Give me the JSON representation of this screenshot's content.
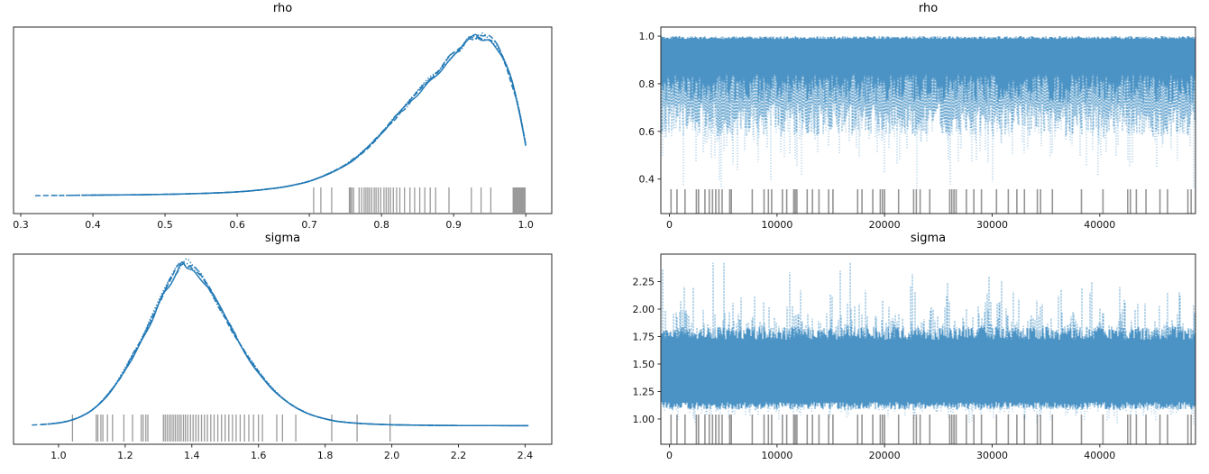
{
  "figure": {
    "background": "#ffffff",
    "line_color": "#1f77b4",
    "trace_core_color": "#4690c3",
    "trace_mid_color": "#5a9dcb",
    "trace_spike_color": "#7db2d8",
    "rug_color": "rgba(30,30,30,0.45)",
    "divergence_color": "rgba(60,60,60,0.55)",
    "spine_color": "#2a2a2a",
    "tick_label_color": "#111111"
  },
  "chart_data": [
    {
      "type": "line",
      "subtype": "kde-posterior",
      "title": "rho",
      "xlabel": "",
      "ylabel": "",
      "legend": "none",
      "grid": false,
      "xlim": [
        0.29,
        1.036
      ],
      "x_ticks": [
        {
          "v": 0.3,
          "label": "0.3"
        },
        {
          "v": 0.4,
          "label": "0.4"
        },
        {
          "v": 0.5,
          "label": "0.5"
        },
        {
          "v": 0.6,
          "label": "0.6"
        },
        {
          "v": 0.7,
          "label": "0.7"
        },
        {
          "v": 0.8,
          "label": "0.8"
        },
        {
          "v": 0.9,
          "label": "0.9"
        },
        {
          "v": 1.0,
          "label": "1.0"
        }
      ],
      "kde_x": [
        0.32,
        0.345,
        0.37,
        0.395,
        0.42,
        0.445,
        0.47,
        0.495,
        0.52,
        0.545,
        0.57,
        0.595,
        0.62,
        0.645,
        0.665,
        0.685,
        0.7,
        0.715,
        0.73,
        0.745,
        0.76,
        0.775,
        0.79,
        0.805,
        0.82,
        0.835,
        0.85,
        0.865,
        0.88,
        0.895,
        0.91,
        0.92,
        0.93,
        0.935,
        0.94,
        0.95,
        0.96,
        0.97,
        0.98,
        0.99,
        1.0
      ],
      "kde_density": [
        0.016,
        0.017,
        0.018,
        0.019,
        0.02,
        0.021,
        0.022,
        0.024,
        0.026,
        0.029,
        0.033,
        0.038,
        0.046,
        0.058,
        0.07,
        0.088,
        0.105,
        0.13,
        0.158,
        0.192,
        0.235,
        0.288,
        0.352,
        0.425,
        0.5,
        0.572,
        0.648,
        0.718,
        0.79,
        0.862,
        0.93,
        0.968,
        0.995,
        1.0,
        0.998,
        0.98,
        0.935,
        0.85,
        0.725,
        0.555,
        0.33
      ],
      "series": [
        {
          "name": "chain 0",
          "style": "solid",
          "x_start": 0.372
        },
        {
          "name": "chain 1",
          "style": "dashed",
          "x_start": 0.32
        },
        {
          "name": "chain 2",
          "style": "dashdot",
          "x_start": 0.355
        },
        {
          "name": "chain 3",
          "style": "dotted",
          "x_start": 0.34
        }
      ],
      "rug_values": [
        0.706,
        0.716,
        0.731,
        0.7555,
        0.757,
        0.759,
        0.7615,
        0.769,
        0.7725,
        0.776,
        0.7785,
        0.781,
        0.7835,
        0.7865,
        0.79,
        0.7925,
        0.7955,
        0.799,
        0.8035,
        0.8065,
        0.8095,
        0.8125,
        0.8165,
        0.821,
        0.8255,
        0.832,
        0.8395,
        0.846,
        0.853,
        0.86,
        0.8675,
        0.875,
        0.8935,
        0.9245,
        0.938,
        0.9515,
        0.9825,
        0.984,
        0.9855,
        0.987,
        0.9885,
        0.99,
        0.9915,
        0.993,
        0.9945,
        0.996,
        0.9975,
        0.999
      ]
    },
    {
      "type": "line",
      "subtype": "mcmc-trace",
      "title": "rho",
      "xlabel": "",
      "ylabel": "",
      "legend": "none",
      "grid": false,
      "xlim": [
        -800,
        48900
      ],
      "ylim": [
        0.255,
        1.038
      ],
      "x_ticks": [
        {
          "v": 0,
          "label": "0"
        },
        {
          "v": 10000,
          "label": "10000"
        },
        {
          "v": 20000,
          "label": "20000"
        },
        {
          "v": 30000,
          "label": "30000"
        },
        {
          "v": 40000,
          "label": "40000"
        }
      ],
      "y_ticks": [
        {
          "v": 0.4,
          "label": "0.4"
        },
        {
          "v": 0.6,
          "label": "0.6"
        },
        {
          "v": 0.8,
          "label": "0.8"
        },
        {
          "v": 1.0,
          "label": "1.0"
        }
      ],
      "n_chains": 4,
      "band": {
        "top": 1.0,
        "solid_bottom": 0.78,
        "mid_bottom": 0.65,
        "spike_min": 0.36
      },
      "divergences": [
        150,
        700,
        1450,
        2500,
        2700,
        3300,
        3700,
        4000,
        4300,
        4600,
        4900,
        5600,
        5750,
        7700,
        8800,
        9200,
        9500,
        10500,
        10900,
        11550,
        11700,
        11850,
        12800,
        13300,
        13900,
        14800,
        15200,
        17500,
        17900,
        18900,
        19600,
        19800,
        20000,
        21300,
        22700,
        22950,
        23300,
        24200,
        26050,
        26250,
        26450,
        26650,
        27600,
        28300,
        29000,
        30400,
        31500,
        32300,
        33000,
        34200,
        34500,
        35600,
        38300,
        40300,
        42600,
        42850,
        43400,
        44300,
        45600,
        46300,
        48200,
        48500,
        49000,
        49400
      ]
    },
    {
      "type": "line",
      "subtype": "kde-posterior",
      "title": "sigma",
      "xlabel": "",
      "ylabel": "",
      "legend": "none",
      "grid": false,
      "xlim": [
        0.865,
        2.48
      ],
      "x_ticks": [
        {
          "v": 1.0,
          "label": "1.0"
        },
        {
          "v": 1.2,
          "label": "1.2"
        },
        {
          "v": 1.4,
          "label": "1.4"
        },
        {
          "v": 1.6,
          "label": "1.6"
        },
        {
          "v": 1.8,
          "label": "1.8"
        },
        {
          "v": 2.0,
          "label": "2.0"
        },
        {
          "v": 2.2,
          "label": "2.2"
        },
        {
          "v": 2.4,
          "label": "2.4"
        }
      ],
      "kde_x": [
        0.92,
        0.95,
        0.98,
        1.01,
        1.04,
        1.07,
        1.1,
        1.13,
        1.16,
        1.19,
        1.22,
        1.25,
        1.28,
        1.31,
        1.335,
        1.355,
        1.37,
        1.385,
        1.405,
        1.43,
        1.46,
        1.49,
        1.52,
        1.55,
        1.58,
        1.61,
        1.64,
        1.67,
        1.7,
        1.73,
        1.76,
        1.79,
        1.83,
        1.87,
        1.91,
        1.95,
        2.0,
        2.06,
        2.12,
        2.2,
        2.3,
        2.41
      ],
      "kde_density": [
        0.013,
        0.016,
        0.021,
        0.029,
        0.044,
        0.068,
        0.104,
        0.158,
        0.23,
        0.32,
        0.425,
        0.54,
        0.665,
        0.79,
        0.89,
        0.96,
        1.0,
        0.995,
        0.965,
        0.905,
        0.815,
        0.71,
        0.6,
        0.492,
        0.393,
        0.308,
        0.237,
        0.18,
        0.135,
        0.1,
        0.074,
        0.056,
        0.038,
        0.028,
        0.022,
        0.018,
        0.0145,
        0.0125,
        0.011,
        0.01,
        0.0095,
        0.009
      ],
      "series": [
        {
          "name": "chain 0",
          "style": "solid",
          "x_start": 0.952
        },
        {
          "name": "chain 1",
          "style": "dashed",
          "x_start": 0.92
        },
        {
          "name": "chain 2",
          "style": "dashdot",
          "x_start": 0.935
        },
        {
          "name": "chain 3",
          "style": "dotted",
          "x_start": 0.945
        }
      ],
      "rug_values": [
        1.042,
        1.113,
        1.118,
        1.127,
        1.133,
        1.147,
        1.162,
        1.196,
        1.222,
        1.248,
        1.254,
        1.262,
        1.268,
        1.315,
        1.32,
        1.326,
        1.332,
        1.338,
        1.344,
        1.35,
        1.356,
        1.362,
        1.368,
        1.375,
        1.381,
        1.388,
        1.396,
        1.404,
        1.412,
        1.42,
        1.429,
        1.438,
        1.447,
        1.457,
        1.467,
        1.478,
        1.489,
        1.5,
        1.511,
        1.522,
        1.533,
        1.545,
        1.558,
        1.571,
        1.585,
        1.6,
        1.612,
        1.655,
        1.672,
        1.712,
        1.82,
        1.896,
        1.995
      ]
    },
    {
      "type": "line",
      "subtype": "mcmc-trace",
      "title": "sigma",
      "xlabel": "",
      "ylabel": "",
      "legend": "none",
      "grid": false,
      "xlim": [
        -800,
        48900
      ],
      "ylim": [
        0.77,
        2.5
      ],
      "x_ticks": [
        {
          "v": 0,
          "label": "0"
        },
        {
          "v": 10000,
          "label": "10000"
        },
        {
          "v": 20000,
          "label": "20000"
        },
        {
          "v": 30000,
          "label": "30000"
        },
        {
          "v": 40000,
          "label": "40000"
        }
      ],
      "y_ticks": [
        {
          "v": 1.0,
          "label": "1.00"
        },
        {
          "v": 1.25,
          "label": "1.25"
        },
        {
          "v": 1.5,
          "label": "1.50"
        },
        {
          "v": 1.75,
          "label": "1.75"
        },
        {
          "v": 2.0,
          "label": "2.00"
        },
        {
          "v": 2.25,
          "label": "2.25"
        }
      ],
      "n_chains": 4,
      "band": {
        "core_top": 1.78,
        "core_bottom": 1.12,
        "spike_max": 2.42,
        "spike_min": 0.95
      },
      "divergences": [
        150,
        700,
        1450,
        2500,
        2700,
        3300,
        3700,
        4000,
        4300,
        4600,
        4900,
        5600,
        5750,
        7700,
        8800,
        9200,
        9500,
        10500,
        10900,
        11550,
        11700,
        11850,
        12800,
        13300,
        13900,
        14800,
        15200,
        17500,
        17900,
        18900,
        19600,
        19800,
        20000,
        21300,
        22700,
        22950,
        23300,
        24200,
        26050,
        26250,
        26450,
        26650,
        27600,
        28300,
        29000,
        30400,
        31500,
        32300,
        33000,
        34200,
        34500,
        35600,
        38300,
        40300,
        42600,
        42850,
        43400,
        44300,
        45600,
        46300,
        48200,
        48500,
        49000,
        49400
      ]
    }
  ]
}
